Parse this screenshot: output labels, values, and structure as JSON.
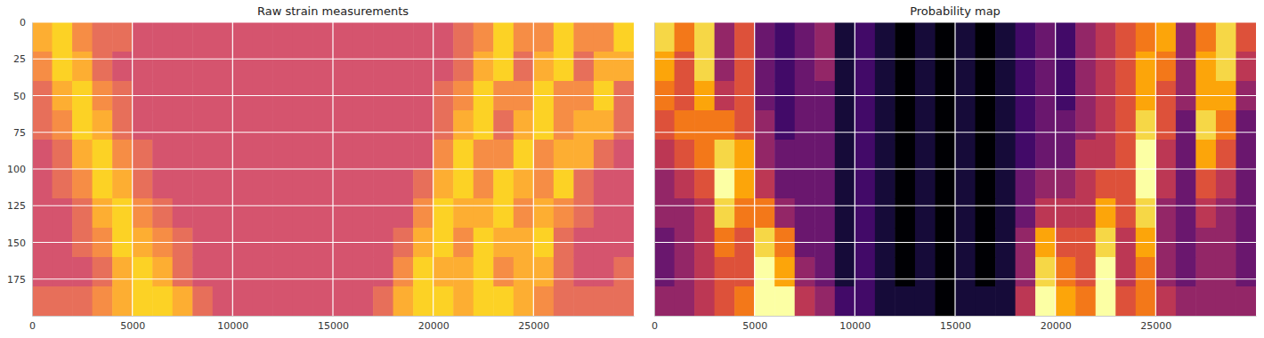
{
  "chart_data": [
    {
      "type": "heatmap",
      "title": "Raw strain measurements",
      "color": "plasma",
      "grid": true,
      "xlim": [
        0,
        30000
      ],
      "ylim": [
        0,
        200
      ],
      "xticks": [
        0,
        5000,
        10000,
        15000,
        20000,
        25000
      ],
      "yticks": [
        0,
        25,
        50,
        75,
        100,
        125,
        150,
        175
      ],
      "zlim": [
        -0.2,
        0.9
      ],
      "x": [
        0,
        1000,
        2000,
        3000,
        4000,
        5000,
        6000,
        7000,
        8000,
        9000,
        10000,
        11000,
        12000,
        13000,
        14000,
        15000,
        16000,
        17000,
        18000,
        19000,
        20000,
        21000,
        22000,
        23000,
        24000,
        25000,
        26000,
        27000,
        28000,
        29000
      ],
      "y": [
        0,
        20,
        40,
        60,
        80,
        100,
        120,
        140,
        160,
        180
      ],
      "cells": [
        [
          0.7,
          0.8,
          0.6,
          0.5,
          0.5,
          0.4,
          0.4,
          0.4,
          0.4,
          0.4,
          0.4,
          0.4,
          0.4,
          0.4,
          0.4,
          0.4,
          0.4,
          0.4,
          0.4,
          0.4,
          0.4,
          0.5,
          0.6,
          0.8,
          0.6,
          0.6,
          0.8,
          0.6,
          0.6,
          0.8
        ],
        [
          0.6,
          0.8,
          0.7,
          0.5,
          0.4,
          0.4,
          0.4,
          0.4,
          0.4,
          0.4,
          0.4,
          0.4,
          0.4,
          0.4,
          0.4,
          0.4,
          0.4,
          0.4,
          0.4,
          0.4,
          0.4,
          0.5,
          0.7,
          0.8,
          0.5,
          0.7,
          0.8,
          0.5,
          0.7,
          0.7
        ],
        [
          0.5,
          0.7,
          0.8,
          0.6,
          0.5,
          0.4,
          0.4,
          0.4,
          0.4,
          0.4,
          0.4,
          0.4,
          0.4,
          0.4,
          0.4,
          0.4,
          0.4,
          0.4,
          0.4,
          0.4,
          0.5,
          0.6,
          0.8,
          0.6,
          0.6,
          0.8,
          0.6,
          0.6,
          0.8,
          0.5
        ],
        [
          0.5,
          0.6,
          0.8,
          0.7,
          0.5,
          0.4,
          0.4,
          0.4,
          0.4,
          0.4,
          0.4,
          0.4,
          0.4,
          0.4,
          0.4,
          0.4,
          0.4,
          0.4,
          0.4,
          0.4,
          0.5,
          0.7,
          0.8,
          0.5,
          0.7,
          0.8,
          0.6,
          0.7,
          0.7,
          0.5
        ],
        [
          0.4,
          0.5,
          0.7,
          0.8,
          0.6,
          0.5,
          0.4,
          0.4,
          0.4,
          0.4,
          0.4,
          0.4,
          0.4,
          0.4,
          0.4,
          0.4,
          0.4,
          0.4,
          0.4,
          0.4,
          0.6,
          0.8,
          0.6,
          0.6,
          0.8,
          0.6,
          0.7,
          0.7,
          0.5,
          0.4
        ],
        [
          0.4,
          0.5,
          0.6,
          0.8,
          0.7,
          0.5,
          0.4,
          0.4,
          0.4,
          0.4,
          0.4,
          0.4,
          0.4,
          0.4,
          0.4,
          0.4,
          0.4,
          0.4,
          0.4,
          0.5,
          0.7,
          0.8,
          0.6,
          0.8,
          0.7,
          0.6,
          0.8,
          0.5,
          0.4,
          0.4
        ],
        [
          0.4,
          0.4,
          0.5,
          0.7,
          0.8,
          0.6,
          0.5,
          0.4,
          0.4,
          0.4,
          0.4,
          0.4,
          0.4,
          0.4,
          0.4,
          0.4,
          0.4,
          0.4,
          0.4,
          0.6,
          0.8,
          0.7,
          0.7,
          0.8,
          0.6,
          0.7,
          0.6,
          0.5,
          0.4,
          0.4
        ],
        [
          0.4,
          0.4,
          0.5,
          0.6,
          0.8,
          0.7,
          0.6,
          0.5,
          0.4,
          0.4,
          0.4,
          0.4,
          0.4,
          0.4,
          0.4,
          0.4,
          0.4,
          0.4,
          0.5,
          0.7,
          0.8,
          0.6,
          0.8,
          0.7,
          0.7,
          0.8,
          0.5,
          0.4,
          0.4,
          0.4
        ],
        [
          0.4,
          0.4,
          0.4,
          0.5,
          0.7,
          0.8,
          0.7,
          0.5,
          0.4,
          0.4,
          0.4,
          0.4,
          0.4,
          0.4,
          0.4,
          0.4,
          0.4,
          0.4,
          0.6,
          0.8,
          0.7,
          0.7,
          0.8,
          0.6,
          0.7,
          0.7,
          0.5,
          0.4,
          0.4,
          0.5
        ],
        [
          0.5,
          0.5,
          0.5,
          0.6,
          0.7,
          0.8,
          0.8,
          0.7,
          0.5,
          0.4,
          0.4,
          0.4,
          0.4,
          0.4,
          0.4,
          0.4,
          0.4,
          0.5,
          0.7,
          0.8,
          0.8,
          0.7,
          0.8,
          0.8,
          0.7,
          0.6,
          0.5,
          0.5,
          0.5,
          0.5
        ]
      ]
    },
    {
      "type": "heatmap",
      "title": "Probability map",
      "color": "inferno",
      "grid": true,
      "tick_labels": "x",
      "xlim": [
        0,
        30000
      ],
      "ylim": [
        0,
        200
      ],
      "xticks": [
        0,
        5000,
        10000,
        15000,
        20000,
        25000
      ],
      "yticks": [
        0,
        25,
        50,
        75,
        100,
        125,
        150,
        175
      ],
      "zlim": [
        0,
        1
      ],
      "x": [
        0,
        1000,
        2000,
        3000,
        4000,
        5000,
        6000,
        7000,
        8000,
        9000,
        10000,
        11000,
        12000,
        13000,
        14000,
        15000,
        16000,
        17000,
        18000,
        19000,
        20000,
        21000,
        22000,
        23000,
        24000,
        25000,
        26000,
        27000,
        28000,
        29000
      ],
      "y": [
        0,
        20,
        40,
        60,
        80,
        100,
        120,
        140,
        160,
        180
      ],
      "cells": [
        [
          0.9,
          0.7,
          0.9,
          0.4,
          0.6,
          0.3,
          0.2,
          0.3,
          0.4,
          0.1,
          0.2,
          0.1,
          0.0,
          0.1,
          0.0,
          0.1,
          0.0,
          0.1,
          0.2,
          0.3,
          0.2,
          0.4,
          0.5,
          0.6,
          0.7,
          0.8,
          0.4,
          0.7,
          0.9,
          0.6
        ],
        [
          0.8,
          0.6,
          0.9,
          0.4,
          0.6,
          0.3,
          0.2,
          0.3,
          0.4,
          0.1,
          0.2,
          0.1,
          0.0,
          0.1,
          0.0,
          0.1,
          0.0,
          0.1,
          0.2,
          0.3,
          0.2,
          0.4,
          0.5,
          0.6,
          0.8,
          0.7,
          0.4,
          0.8,
          0.9,
          0.5
        ],
        [
          0.7,
          0.6,
          0.8,
          0.5,
          0.6,
          0.3,
          0.2,
          0.3,
          0.3,
          0.1,
          0.2,
          0.1,
          0.0,
          0.1,
          0.0,
          0.1,
          0.0,
          0.1,
          0.2,
          0.3,
          0.2,
          0.4,
          0.5,
          0.6,
          0.8,
          0.6,
          0.4,
          0.8,
          0.8,
          0.4
        ],
        [
          0.6,
          0.7,
          0.7,
          0.7,
          0.6,
          0.4,
          0.2,
          0.3,
          0.3,
          0.1,
          0.2,
          0.1,
          0.0,
          0.1,
          0.0,
          0.1,
          0.0,
          0.1,
          0.2,
          0.3,
          0.3,
          0.4,
          0.5,
          0.6,
          0.9,
          0.6,
          0.3,
          0.9,
          0.7,
          0.3
        ],
        [
          0.5,
          0.6,
          0.7,
          0.9,
          0.8,
          0.4,
          0.3,
          0.3,
          0.3,
          0.1,
          0.2,
          0.1,
          0.0,
          0.1,
          0.0,
          0.1,
          0.0,
          0.1,
          0.2,
          0.3,
          0.3,
          0.5,
          0.5,
          0.6,
          1.0,
          0.5,
          0.3,
          0.8,
          0.6,
          0.3
        ],
        [
          0.4,
          0.5,
          0.6,
          1.0,
          0.8,
          0.5,
          0.3,
          0.3,
          0.3,
          0.1,
          0.2,
          0.1,
          0.0,
          0.1,
          0.0,
          0.1,
          0.0,
          0.1,
          0.3,
          0.4,
          0.4,
          0.5,
          0.6,
          0.6,
          1.0,
          0.5,
          0.3,
          0.6,
          0.5,
          0.3
        ],
        [
          0.4,
          0.4,
          0.5,
          0.9,
          0.7,
          0.7,
          0.4,
          0.3,
          0.3,
          0.1,
          0.2,
          0.1,
          0.0,
          0.1,
          0.0,
          0.1,
          0.0,
          0.1,
          0.3,
          0.5,
          0.5,
          0.5,
          0.8,
          0.6,
          0.9,
          0.4,
          0.3,
          0.5,
          0.4,
          0.3
        ],
        [
          0.3,
          0.4,
          0.5,
          0.7,
          0.6,
          0.9,
          0.7,
          0.3,
          0.3,
          0.1,
          0.2,
          0.1,
          0.0,
          0.1,
          0.0,
          0.1,
          0.0,
          0.1,
          0.4,
          0.8,
          0.6,
          0.6,
          0.9,
          0.5,
          0.8,
          0.4,
          0.3,
          0.4,
          0.4,
          0.3
        ],
        [
          0.3,
          0.4,
          0.5,
          0.6,
          0.6,
          1.0,
          0.8,
          0.4,
          0.3,
          0.1,
          0.2,
          0.1,
          0.0,
          0.1,
          0.0,
          0.1,
          0.0,
          0.1,
          0.4,
          0.9,
          0.7,
          0.6,
          1.0,
          0.5,
          0.7,
          0.4,
          0.3,
          0.4,
          0.4,
          0.3
        ],
        [
          0.4,
          0.4,
          0.5,
          0.6,
          0.7,
          1.0,
          1.0,
          0.5,
          0.4,
          0.2,
          0.2,
          0.1,
          0.1,
          0.1,
          0.0,
          0.1,
          0.1,
          0.1,
          0.5,
          1.0,
          0.8,
          0.7,
          1.0,
          0.6,
          0.7,
          0.5,
          0.4,
          0.4,
          0.4,
          0.4
        ]
      ]
    }
  ]
}
